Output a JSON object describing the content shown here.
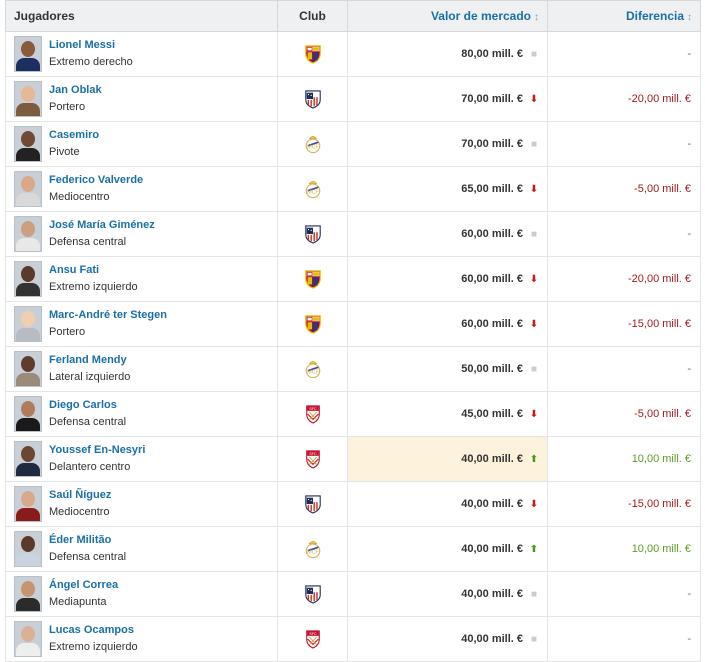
{
  "table": {
    "headers": {
      "players": "Jugadores",
      "club": "Club",
      "market_value": "Valor de mercado",
      "difference": "Diferencia"
    },
    "rows": [
      {
        "name": "Lionel Messi",
        "position": "Extremo derecho",
        "club": "barcelona",
        "value": "80,00 mill. €",
        "trend": "none",
        "diff": "-",
        "diff_kind": "zero",
        "highlight": false
      },
      {
        "name": "Jan Oblak",
        "position": "Portero",
        "club": "atletico",
        "value": "70,00 mill. €",
        "trend": "down",
        "diff": "-20,00 mill. €",
        "diff_kind": "neg",
        "highlight": false
      },
      {
        "name": "Casemiro",
        "position": "Pivote",
        "club": "realmadrid",
        "value": "70,00 mill. €",
        "trend": "none",
        "diff": "-",
        "diff_kind": "zero",
        "highlight": false
      },
      {
        "name": "Federico Valverde",
        "position": "Mediocentro",
        "club": "realmadrid",
        "value": "65,00 mill. €",
        "trend": "down",
        "diff": "-5,00 mill. €",
        "diff_kind": "neg",
        "highlight": false
      },
      {
        "name": "José María Giménez",
        "position": "Defensa central",
        "club": "atletico",
        "value": "60,00 mill. €",
        "trend": "none",
        "diff": "-",
        "diff_kind": "zero",
        "highlight": false
      },
      {
        "name": "Ansu Fati",
        "position": "Extremo izquierdo",
        "club": "barcelona",
        "value": "60,00 mill. €",
        "trend": "down",
        "diff": "-20,00 mill. €",
        "diff_kind": "neg",
        "highlight": false
      },
      {
        "name": "Marc-André ter Stegen",
        "position": "Portero",
        "club": "barcelona",
        "value": "60,00 mill. €",
        "trend": "down",
        "diff": "-15,00 mill. €",
        "diff_kind": "neg",
        "highlight": false
      },
      {
        "name": "Ferland Mendy",
        "position": "Lateral izquierdo",
        "club": "realmadrid",
        "value": "50,00 mill. €",
        "trend": "none",
        "diff": "-",
        "diff_kind": "zero",
        "highlight": false
      },
      {
        "name": "Diego Carlos",
        "position": "Defensa central",
        "club": "sevilla",
        "value": "45,00 mill. €",
        "trend": "down",
        "diff": "-5,00 mill. €",
        "diff_kind": "neg",
        "highlight": false
      },
      {
        "name": "Youssef En-Nesyri",
        "position": "Delantero centro",
        "club": "sevilla",
        "value": "40,00 mill. €",
        "trend": "up",
        "diff": "10,00 mill. €",
        "diff_kind": "pos",
        "highlight": true
      },
      {
        "name": "Saúl Ñíguez",
        "position": "Mediocentro",
        "club": "atletico",
        "value": "40,00 mill. €",
        "trend": "down",
        "diff": "-15,00 mill. €",
        "diff_kind": "neg",
        "highlight": false
      },
      {
        "name": "Éder Militão",
        "position": "Defensa central",
        "club": "realmadrid",
        "value": "40,00 mill. €",
        "trend": "up",
        "diff": "10,00 mill. €",
        "diff_kind": "pos",
        "highlight": false
      },
      {
        "name": "Ángel Correa",
        "position": "Mediapunta",
        "club": "atletico",
        "value": "40,00 mill. €",
        "trend": "none",
        "diff": "-",
        "diff_kind": "zero",
        "highlight": false
      },
      {
        "name": "Lucas Ocampos",
        "position": "Extremo izquierdo",
        "club": "sevilla",
        "value": "40,00 mill. €",
        "trend": "none",
        "diff": "-",
        "diff_kind": "zero",
        "highlight": false
      }
    ]
  },
  "colors": {
    "link": "#1a6fa6",
    "down": "#c41b1b",
    "up": "#4d9a1b",
    "highlight": "#fdf3dc"
  }
}
